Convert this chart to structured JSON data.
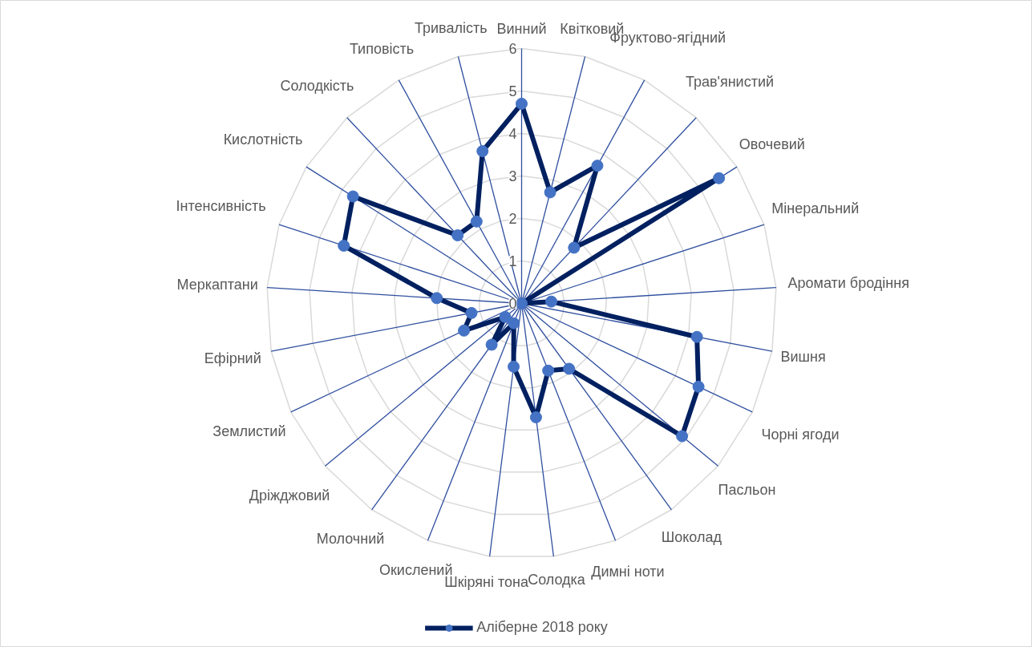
{
  "chart_data": {
    "type": "radar",
    "categories": [
      "Винний",
      "Квітковий",
      "Фруктово-ягідний",
      "Трав'янистий",
      "Овочевий",
      "Мінеральний",
      "Аромати бродіння",
      "Вишня",
      "Чорні ягоди",
      "Пасльон",
      "Шоколад",
      "Димні ноти",
      "Солодка",
      "Шкіряні тона",
      "Окислений",
      "Молочний",
      "Дріжджовий",
      "Землистий",
      "Ефірний",
      "Меркаптани",
      "Інтенсивність",
      "Кислотність",
      "Солодкість",
      "Типовість",
      "Тривалість"
    ],
    "series": [
      {
        "name": "Аліберне 2018 року",
        "color": "#002060",
        "values": [
          4.7,
          2.7,
          3.7,
          1.8,
          5.5,
          0,
          0.7,
          4.2,
          4.6,
          4.9,
          1.9,
          1.7,
          2.7,
          1.5,
          0.5,
          1.2,
          0.5,
          1.5,
          1.2,
          2.0,
          4.4,
          4.7,
          2.2,
          2.2,
          3.7
        ]
      }
    ],
    "ylim": [
      0,
      6
    ],
    "yticks": [
      0,
      1,
      2,
      3,
      4,
      5,
      6
    ],
    "grid": true,
    "marker": "circle",
    "line_style": "solid",
    "legend": "bottom"
  }
}
